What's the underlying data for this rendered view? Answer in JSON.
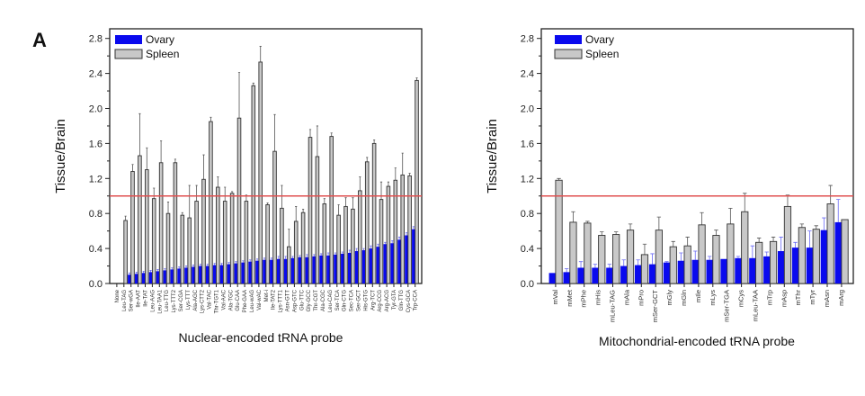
{
  "panel_label": "A",
  "colors": {
    "ovary": "#0a0aee",
    "spleen": "#c8c8c8",
    "reference_line": "#e05050",
    "ovary_error": "#6a6af5"
  },
  "chart_data": [
    {
      "type": "bar",
      "xlabel": "Nuclear-encoded tRNA probe",
      "ylabel": "Tissue/Brain",
      "ylim": [
        0,
        2.8
      ],
      "yticks": [
        "0.0",
        "0.4",
        "0.8",
        "1.2",
        "1.6",
        "2.0",
        "2.4",
        "2.8"
      ],
      "reference_line": 1.0,
      "legend_position": "top-left",
      "grid": false,
      "categories": [
        "None",
        "Leu-TAG",
        "Ser-wGA",
        "Ile-AAT",
        "Ile-TAT",
        "Leu-AAG",
        "Leu-TAA1",
        "Leu-TTG",
        "Lys-TTT2",
        "Ser-CGA",
        "Lys-TTT",
        "Ala-AGC",
        "Lys-CTT2",
        "Val-TAC",
        "Thr-TGT1",
        "Val-AAC",
        "Ala-TGC",
        "Glu-CAA",
        "Phe-GAA",
        "Leu-wAG",
        "Val-wAC",
        "Met-i",
        "Ile-TAT2",
        "Lys-TTT1",
        "Asn-GTT",
        "Asp-GTC",
        "Glu-TTC",
        "Gly-GCC",
        "Thr-CGT",
        "Ala-CGC",
        "Leu-CAG",
        "Ser-TCA",
        "Gln-CTG",
        "Sec-TCA",
        "Ser-GCT",
        "His-GTG",
        "Arg-TCT",
        "Arg-CCG",
        "Arg-ACG",
        "Tyr-GTA",
        "Gln-TTG",
        "Cys-GCA",
        "Trp-CCA"
      ],
      "series": [
        {
          "name": "Ovary",
          "values": [
            null,
            null,
            0.1,
            0.11,
            0.12,
            0.13,
            0.14,
            0.15,
            0.16,
            0.17,
            0.18,
            0.19,
            0.2,
            0.2,
            0.21,
            0.21,
            0.22,
            0.23,
            0.24,
            0.25,
            0.26,
            0.27,
            0.27,
            0.28,
            0.28,
            0.29,
            0.3,
            0.3,
            0.31,
            0.32,
            0.32,
            0.33,
            0.34,
            0.35,
            0.37,
            0.38,
            0.4,
            0.42,
            0.45,
            0.46,
            0.5,
            0.55,
            0.62
          ],
          "errors": [
            null,
            null,
            0.02,
            0.02,
            0.02,
            0.02,
            0.02,
            0.02,
            0.02,
            0.02,
            0.02,
            0.02,
            0.02,
            0.02,
            0.02,
            0.02,
            0.02,
            0.02,
            0.02,
            0.02,
            0.02,
            0.02,
            0.02,
            0.03,
            0.03,
            0.02,
            0.02,
            0.03,
            0.02,
            0.02,
            0.03,
            0.02,
            0.02,
            0.03,
            0.03,
            0.02,
            0.03,
            0.03,
            0.02,
            0.03,
            0.03,
            0.03,
            0.03
          ]
        },
        {
          "name": "Spleen",
          "values": [
            null,
            0.72,
            1.28,
            1.46,
            1.3,
            0.97,
            1.38,
            0.8,
            1.38,
            0.78,
            0.75,
            0.94,
            1.19,
            1.85,
            1.1,
            0.94,
            1.03,
            1.89,
            0.94,
            2.26,
            2.53,
            0.9,
            1.51,
            0.86,
            0.42,
            0.71,
            0.81,
            1.67,
            1.45,
            0.91,
            1.68,
            0.78,
            0.88,
            0.85,
            1.06,
            1.39,
            1.6,
            0.96,
            1.11,
            1.18,
            1.24,
            1.23,
            2.32
          ],
          "errors": [
            null,
            0.05,
            0.08,
            0.48,
            0.25,
            0.12,
            0.25,
            0.13,
            0.04,
            0.03,
            0.37,
            0.18,
            0.28,
            0.05,
            0.12,
            0.16,
            0.02,
            0.52,
            0.07,
            0.03,
            0.18,
            0.02,
            0.42,
            0.26,
            0.2,
            0.17,
            0.04,
            0.09,
            0.35,
            0.06,
            0.04,
            0.12,
            0.1,
            0.13,
            0.16,
            0.05,
            0.04,
            0.2,
            0.05,
            0.14,
            0.25,
            0.03,
            0.03
          ]
        }
      ]
    },
    {
      "type": "bar",
      "xlabel": "Mitochondrial-encoded tRNA probe",
      "ylabel": "Tissue/Brain",
      "ylim": [
        0,
        2.8
      ],
      "yticks": [
        "0.0",
        "0.4",
        "0.8",
        "1.2",
        "1.6",
        "2.0",
        "2.4",
        "2.8"
      ],
      "reference_line": 1.0,
      "legend_position": "top-left",
      "grid": false,
      "categories": [
        "mVal",
        "mMet",
        "mPhe",
        "mHis",
        "mLeu-TAG",
        "mAla",
        "mPro",
        "mSer-GCT",
        "mGly",
        "mGln",
        "mIle",
        "mLys",
        "mSer-TGA",
        "mCys",
        "mLeu-TAA",
        "mTrp",
        "mAsp",
        "mThr",
        "mTyr",
        "mAsn",
        "mArg"
      ],
      "series": [
        {
          "name": "Ovary",
          "values": [
            0.12,
            0.13,
            0.18,
            0.18,
            0.18,
            0.2,
            0.21,
            0.22,
            0.24,
            0.26,
            0.27,
            0.27,
            0.28,
            0.29,
            0.29,
            0.31,
            0.37,
            0.41,
            0.41,
            0.61,
            0.7
          ],
          "errors": [
            0.0,
            0.04,
            0.07,
            0.04,
            0.04,
            0.07,
            0.06,
            0.12,
            0.01,
            0.09,
            0.1,
            0.04,
            0.0,
            0.02,
            0.14,
            0.05,
            0.16,
            0.06,
            0.19,
            0.14,
            0.26
          ]
        },
        {
          "name": "Spleen",
          "values": [
            1.18,
            0.7,
            0.69,
            0.55,
            0.56,
            0.61,
            0.33,
            0.61,
            0.42,
            0.43,
            0.67,
            0.55,
            0.68,
            0.82,
            0.47,
            0.48,
            0.88,
            0.64,
            0.62,
            0.91,
            0.73
          ],
          "errors": [
            0.02,
            0.12,
            0.02,
            0.04,
            0.03,
            0.07,
            0.12,
            0.15,
            0.06,
            0.1,
            0.14,
            0.06,
            0.18,
            0.21,
            0.05,
            0.05,
            0.13,
            0.04,
            0.04,
            0.21,
            0.0
          ]
        }
      ]
    }
  ]
}
